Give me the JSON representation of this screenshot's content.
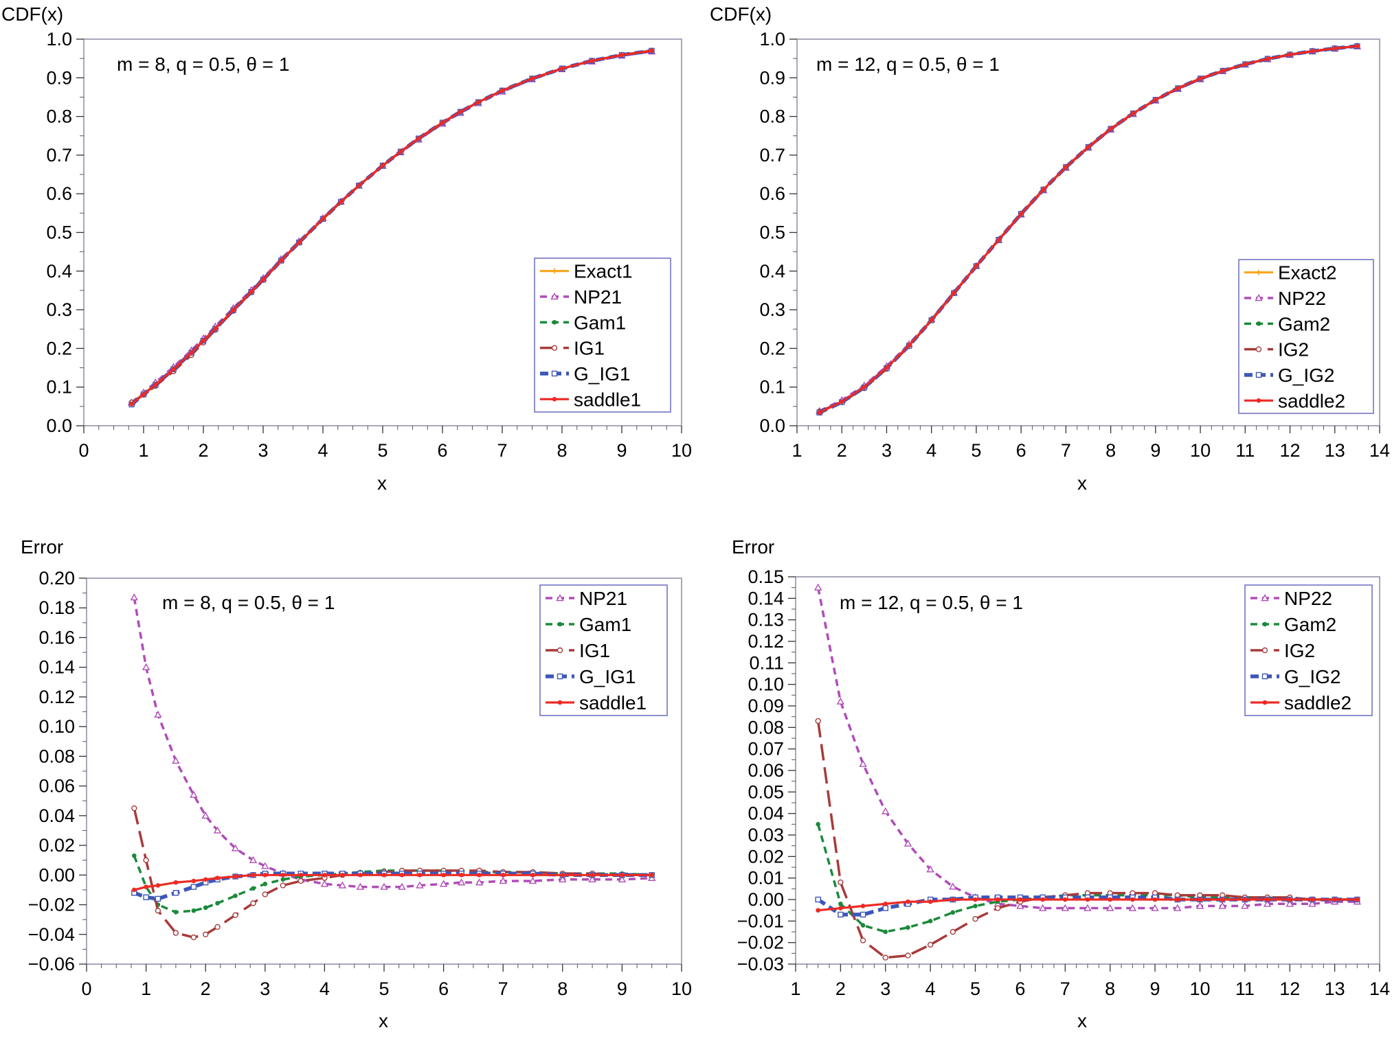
{
  "chart_data": [
    {
      "id": "tl",
      "type": "line",
      "ylabel": "CDF(x)",
      "xlabel": "x",
      "annotation": "m = 8, q = 0.5, θ = 1",
      "xlim": [
        0,
        10
      ],
      "ylim": [
        0,
        1
      ],
      "xticks": [
        "0",
        "1",
        "2",
        "3",
        "4",
        "5",
        "6",
        "7",
        "8",
        "9",
        "10"
      ],
      "yticks": [
        "0.0",
        "0.1",
        "0.2",
        "0.3",
        "0.4",
        "0.5",
        "0.6",
        "0.7",
        "0.8",
        "0.9",
        "1.0"
      ],
      "legend_position": "bottom-right",
      "x": [
        0.8,
        1.0,
        1.2,
        1.5,
        1.8,
        2.0,
        2.2,
        2.5,
        2.8,
        3.0,
        3.3,
        3.6,
        4.0,
        4.3,
        4.6,
        5.0,
        5.3,
        5.6,
        6.0,
        6.3,
        6.6,
        7.0,
        7.5,
        8.0,
        8.5,
        9.0,
        9.5
      ],
      "series": [
        {
          "name": "Exact1",
          "color": "#f7a51d",
          "style": "solid",
          "marker": "plus",
          "values": [
            0.058,
            0.083,
            0.108,
            0.148,
            0.19,
            0.221,
            0.252,
            0.299,
            0.346,
            0.378,
            0.427,
            0.474,
            0.535,
            0.579,
            0.621,
            0.673,
            0.709,
            0.743,
            0.784,
            0.812,
            0.837,
            0.867,
            0.898,
            0.924,
            0.944,
            0.959,
            0.97
          ]
        },
        {
          "name": "NP21",
          "color": "#b04cb8",
          "style": "dash",
          "marker": "triangle",
          "values": [
            0.06,
            0.086,
            0.112,
            0.152,
            0.195,
            0.226,
            0.257,
            0.304,
            0.351,
            0.382,
            0.431,
            0.477,
            0.537,
            0.58,
            0.621,
            0.672,
            0.707,
            0.74,
            0.781,
            0.809,
            0.834,
            0.864,
            0.896,
            0.922,
            0.942,
            0.957,
            0.968
          ]
        },
        {
          "name": "Gam1",
          "color": "#1a8a3a",
          "style": "dash",
          "marker": "dot",
          "values": [
            0.059,
            0.082,
            0.106,
            0.145,
            0.187,
            0.219,
            0.251,
            0.299,
            0.346,
            0.378,
            0.427,
            0.474,
            0.535,
            0.579,
            0.621,
            0.673,
            0.709,
            0.743,
            0.784,
            0.812,
            0.837,
            0.867,
            0.898,
            0.924,
            0.944,
            0.959,
            0.97
          ]
        },
        {
          "name": "IG1",
          "color": "#a83a3a",
          "style": "longdash",
          "marker": "circle",
          "values": [
            0.06,
            0.08,
            0.103,
            0.141,
            0.183,
            0.215,
            0.248,
            0.297,
            0.345,
            0.377,
            0.427,
            0.474,
            0.535,
            0.579,
            0.621,
            0.673,
            0.709,
            0.743,
            0.784,
            0.812,
            0.837,
            0.867,
            0.898,
            0.924,
            0.944,
            0.959,
            0.97
          ]
        },
        {
          "name": "G_IG1",
          "color": "#3c56b8",
          "style": "thickdash",
          "marker": "square",
          "values": [
            0.055,
            0.081,
            0.106,
            0.146,
            0.189,
            0.22,
            0.251,
            0.299,
            0.346,
            0.378,
            0.427,
            0.474,
            0.535,
            0.579,
            0.621,
            0.673,
            0.709,
            0.743,
            0.784,
            0.812,
            0.837,
            0.867,
            0.898,
            0.924,
            0.944,
            0.959,
            0.97
          ]
        },
        {
          "name": "saddle1",
          "color": "#ee2a24",
          "style": "solid",
          "marker": "dot",
          "values": [
            0.056,
            0.081,
            0.106,
            0.146,
            0.189,
            0.22,
            0.251,
            0.299,
            0.346,
            0.378,
            0.427,
            0.474,
            0.535,
            0.579,
            0.621,
            0.673,
            0.709,
            0.743,
            0.784,
            0.812,
            0.837,
            0.867,
            0.898,
            0.924,
            0.944,
            0.959,
            0.97
          ]
        }
      ]
    },
    {
      "id": "tr",
      "type": "line",
      "ylabel": "CDF(x)",
      "xlabel": "x",
      "annotation": "m = 12, q = 0.5, θ = 1",
      "xlim": [
        1,
        14
      ],
      "ylim": [
        0,
        1
      ],
      "xticks": [
        "1",
        "2",
        "3",
        "4",
        "5",
        "6",
        "7",
        "8",
        "9",
        "10",
        "11",
        "12",
        "13",
        "14"
      ],
      "yticks": [
        "0.0",
        "0.1",
        "0.2",
        "0.3",
        "0.4",
        "0.5",
        "0.6",
        "0.7",
        "0.8",
        "0.9",
        "1.0"
      ],
      "legend_position": "bottom-right",
      "x": [
        1.5,
        2.0,
        2.5,
        3.0,
        3.5,
        4.0,
        4.5,
        5.0,
        5.5,
        6.0,
        6.5,
        7.0,
        7.5,
        8.0,
        8.5,
        9.0,
        9.5,
        10.0,
        10.5,
        11.0,
        11.5,
        12.0,
        12.5,
        13.0,
        13.5
      ],
      "series": [
        {
          "name": "Exact2",
          "color": "#f7a51d",
          "style": "solid",
          "marker": "plus",
          "values": [
            0.035,
            0.062,
            0.1,
            0.15,
            0.208,
            0.273,
            0.343,
            0.413,
            0.481,
            0.548,
            0.611,
            0.669,
            0.721,
            0.768,
            0.808,
            0.843,
            0.873,
            0.898,
            0.918,
            0.935,
            0.949,
            0.96,
            0.969,
            0.976,
            0.982
          ]
        },
        {
          "name": "NP22",
          "color": "#b04cb8",
          "style": "dash",
          "marker": "triangle",
          "values": [
            0.038,
            0.066,
            0.104,
            0.154,
            0.211,
            0.275,
            0.344,
            0.413,
            0.48,
            0.546,
            0.609,
            0.667,
            0.719,
            0.766,
            0.806,
            0.841,
            0.871,
            0.896,
            0.917,
            0.934,
            0.948,
            0.959,
            0.968,
            0.975,
            0.981
          ]
        },
        {
          "name": "Gam2",
          "color": "#1a8a3a",
          "style": "dash",
          "marker": "dot",
          "values": [
            0.036,
            0.062,
            0.099,
            0.149,
            0.207,
            0.273,
            0.343,
            0.413,
            0.481,
            0.548,
            0.611,
            0.669,
            0.721,
            0.768,
            0.808,
            0.843,
            0.873,
            0.898,
            0.918,
            0.935,
            0.949,
            0.96,
            0.969,
            0.976,
            0.982
          ]
        },
        {
          "name": "IG2",
          "color": "#a83a3a",
          "style": "longdash",
          "marker": "circle",
          "values": [
            0.037,
            0.061,
            0.097,
            0.147,
            0.206,
            0.273,
            0.343,
            0.413,
            0.481,
            0.548,
            0.611,
            0.669,
            0.721,
            0.768,
            0.808,
            0.843,
            0.873,
            0.898,
            0.918,
            0.935,
            0.949,
            0.96,
            0.969,
            0.976,
            0.982
          ]
        },
        {
          "name": "G_IG2",
          "color": "#3c56b8",
          "style": "thickdash",
          "marker": "square",
          "values": [
            0.034,
            0.061,
            0.099,
            0.149,
            0.207,
            0.273,
            0.343,
            0.413,
            0.481,
            0.548,
            0.611,
            0.669,
            0.721,
            0.768,
            0.808,
            0.843,
            0.873,
            0.898,
            0.918,
            0.935,
            0.949,
            0.96,
            0.969,
            0.976,
            0.982
          ]
        },
        {
          "name": "saddle2",
          "color": "#ee2a24",
          "style": "solid",
          "marker": "dot",
          "values": [
            0.034,
            0.062,
            0.1,
            0.15,
            0.208,
            0.273,
            0.343,
            0.413,
            0.481,
            0.548,
            0.611,
            0.669,
            0.721,
            0.768,
            0.808,
            0.843,
            0.873,
            0.898,
            0.918,
            0.935,
            0.949,
            0.96,
            0.969,
            0.976,
            0.982
          ]
        }
      ]
    },
    {
      "id": "bl",
      "type": "line",
      "ylabel": "Error",
      "xlabel": "x",
      "annotation": "m = 8, q = 0.5, θ = 1",
      "xlim": [
        0,
        10
      ],
      "ylim": [
        -0.06,
        0.2
      ],
      "xticks": [
        "0",
        "1",
        "2",
        "3",
        "4",
        "5",
        "6",
        "7",
        "8",
        "9",
        "10"
      ],
      "yticks": [
        "−0.06",
        "−0.04",
        "−0.02",
        "0.00",
        "0.02",
        "0.04",
        "0.06",
        "0.08",
        "0.10",
        "0.12",
        "0.14",
        "0.16",
        "0.18",
        "0.20"
      ],
      "legend_position": "top-right",
      "x": [
        0.8,
        1.0,
        1.2,
        1.5,
        1.8,
        2.0,
        2.2,
        2.5,
        2.8,
        3.0,
        3.3,
        3.6,
        4.0,
        4.3,
        4.6,
        5.0,
        5.3,
        5.6,
        6.0,
        6.3,
        6.6,
        7.0,
        7.5,
        8.0,
        8.5,
        9.0,
        9.5
      ],
      "series": [
        {
          "name": "NP21",
          "color": "#b04cb8",
          "style": "dash",
          "marker": "triangle",
          "values": [
            0.187,
            0.14,
            0.108,
            0.077,
            0.054,
            0.04,
            0.03,
            0.018,
            0.01,
            0.006,
            0.001,
            -0.003,
            -0.006,
            -0.007,
            -0.008,
            -0.008,
            -0.008,
            -0.007,
            -0.006,
            -0.005,
            -0.005,
            -0.004,
            -0.004,
            -0.003,
            -0.003,
            -0.003,
            -0.002
          ]
        },
        {
          "name": "Gam1",
          "color": "#1a8a3a",
          "style": "dash",
          "marker": "dot",
          "values": [
            0.013,
            -0.008,
            -0.02,
            -0.025,
            -0.024,
            -0.022,
            -0.019,
            -0.014,
            -0.009,
            -0.006,
            -0.003,
            -0.001,
            0.0,
            0.001,
            0.002,
            0.003,
            0.003,
            0.003,
            0.003,
            0.003,
            0.002,
            0.002,
            0.002,
            0.001,
            0.001,
            0.001,
            0.0
          ]
        },
        {
          "name": "IG1",
          "color": "#a83a3a",
          "style": "longdash",
          "marker": "circle",
          "values": [
            0.045,
            0.01,
            -0.024,
            -0.039,
            -0.042,
            -0.04,
            -0.035,
            -0.027,
            -0.019,
            -0.013,
            -0.007,
            -0.004,
            -0.002,
            0.0,
            0.001,
            0.002,
            0.003,
            0.003,
            0.003,
            0.003,
            0.003,
            0.002,
            0.002,
            0.001,
            0.001,
            0.0,
            0.0
          ]
        },
        {
          "name": "G_IG1",
          "color": "#3c56b8",
          "style": "thickdash",
          "marker": "square",
          "values": [
            -0.012,
            -0.015,
            -0.016,
            -0.012,
            -0.008,
            -0.005,
            -0.003,
            -0.001,
            0.0,
            0.001,
            0.001,
            0.001,
            0.001,
            0.001,
            0.001,
            0.001,
            0.001,
            0.001,
            0.001,
            0.001,
            0.001,
            0.001,
            0.001,
            0.0,
            0.0,
            0.0,
            0.0
          ]
        },
        {
          "name": "saddle1",
          "color": "#ee2a24",
          "style": "solid",
          "marker": "dot",
          "values": [
            -0.01,
            -0.008,
            -0.007,
            -0.005,
            -0.004,
            -0.003,
            -0.002,
            -0.001,
            0.0,
            0.0,
            0.0,
            0.0,
            0.0,
            0.0,
            0.0,
            0.0,
            0.0,
            0.0,
            0.0,
            0.0,
            0.0,
            0.0,
            0.0,
            0.0,
            0.0,
            0.0,
            0.0
          ]
        }
      ]
    },
    {
      "id": "br",
      "type": "line",
      "ylabel": "Error",
      "xlabel": "x",
      "annotation": "m = 12, q = 0.5, θ = 1",
      "xlim": [
        1,
        14
      ],
      "ylim": [
        -0.03,
        0.15
      ],
      "xticks": [
        "1",
        "2",
        "3",
        "4",
        "5",
        "6",
        "7",
        "8",
        "9",
        "10",
        "11",
        "12",
        "13",
        "14"
      ],
      "yticks": [
        "−0.03",
        "−0.02",
        "−0.01",
        "0.00",
        "0.01",
        "0.02",
        "0.03",
        "0.04",
        "0.05",
        "0.06",
        "0.07",
        "0.08",
        "0.09",
        "0.10",
        "0.11",
        "0.12",
        "0.13",
        "0.14",
        "0.15"
      ],
      "legend_position": "top-right",
      "x": [
        1.5,
        2.0,
        2.5,
        3.0,
        3.5,
        4.0,
        4.5,
        5.0,
        5.5,
        6.0,
        6.5,
        7.0,
        7.5,
        8.0,
        8.5,
        9.0,
        9.5,
        10.0,
        10.5,
        11.0,
        11.5,
        12.0,
        12.5,
        13.0,
        13.5
      ],
      "series": [
        {
          "name": "NP22",
          "color": "#b04cb8",
          "style": "dash",
          "marker": "triangle",
          "values": [
            0.145,
            0.092,
            0.063,
            0.041,
            0.026,
            0.014,
            0.006,
            0.001,
            -0.002,
            -0.003,
            -0.004,
            -0.004,
            -0.004,
            -0.004,
            -0.004,
            -0.004,
            -0.004,
            -0.003,
            -0.003,
            -0.003,
            -0.002,
            -0.002,
            -0.002,
            -0.001,
            -0.001
          ]
        },
        {
          "name": "Gam2",
          "color": "#1a8a3a",
          "style": "dash",
          "marker": "dot",
          "values": [
            0.035,
            -0.002,
            -0.012,
            -0.015,
            -0.013,
            -0.01,
            -0.006,
            -0.003,
            -0.001,
            0.0,
            0.001,
            0.002,
            0.002,
            0.002,
            0.002,
            0.002,
            0.002,
            0.001,
            0.001,
            0.001,
            0.001,
            0.0,
            0.0,
            0.0,
            0.0
          ]
        },
        {
          "name": "IG2",
          "color": "#a83a3a",
          "style": "longdash",
          "marker": "circle",
          "values": [
            0.083,
            0.008,
            -0.019,
            -0.027,
            -0.026,
            -0.021,
            -0.015,
            -0.009,
            -0.004,
            -0.001,
            0.001,
            0.002,
            0.003,
            0.003,
            0.003,
            0.003,
            0.002,
            0.002,
            0.002,
            0.001,
            0.001,
            0.001,
            0.0,
            0.0,
            0.0
          ]
        },
        {
          "name": "G_IG2",
          "color": "#3c56b8",
          "style": "thickdash",
          "marker": "square",
          "values": [
            0.0,
            -0.007,
            -0.007,
            -0.004,
            -0.002,
            0.0,
            0.0,
            0.001,
            0.001,
            0.001,
            0.001,
            0.001,
            0.001,
            0.001,
            0.001,
            0.001,
            0.0,
            0.0,
            0.0,
            0.0,
            0.0,
            0.0,
            0.0,
            0.0,
            0.0
          ]
        },
        {
          "name": "saddle2",
          "color": "#ee2a24",
          "style": "solid",
          "marker": "dot",
          "values": [
            -0.005,
            -0.004,
            -0.003,
            -0.002,
            -0.001,
            -0.001,
            0.0,
            0.0,
            0.0,
            0.0,
            0.0,
            0.0,
            0.0,
            0.0,
            0.0,
            0.0,
            0.0,
            0.0,
            0.0,
            0.0,
            0.0,
            0.0,
            0.0,
            0.0,
            0.0
          ]
        }
      ]
    }
  ]
}
